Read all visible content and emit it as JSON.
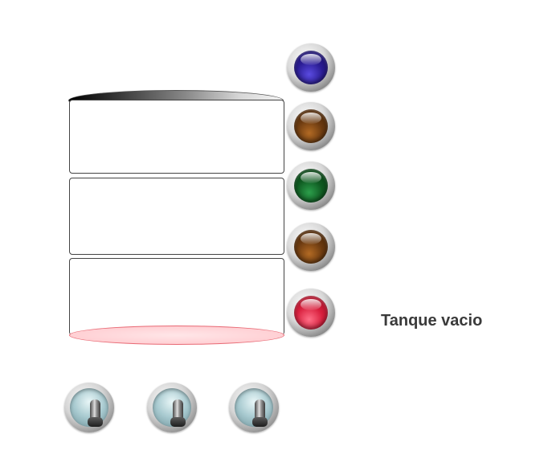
{
  "status": {
    "text": "Tanque vacio"
  },
  "indicators": [
    {
      "name": "indicator-light-blue",
      "color": "#2a1c93",
      "state": "off"
    },
    {
      "name": "indicator-light-level-high",
      "color": "#6b3a10",
      "state": "off"
    },
    {
      "name": "indicator-light-green",
      "color": "#0f5a21",
      "state": "off"
    },
    {
      "name": "indicator-light-level-mid",
      "color": "#6b3a10",
      "state": "off"
    },
    {
      "name": "indicator-light-red",
      "color": "#d81f3d",
      "state": "on"
    }
  ],
  "switches": [
    {
      "name": "toggle-switch-1",
      "icon": "toggle-switch-icon",
      "position": "down"
    },
    {
      "name": "toggle-switch-2",
      "icon": "toggle-switch-icon",
      "position": "down"
    },
    {
      "name": "toggle-switch-3",
      "icon": "toggle-switch-icon",
      "position": "down"
    }
  ],
  "tank": {
    "sections": 3,
    "fill_level": 0,
    "bottom_color": "#ffc5ca"
  }
}
